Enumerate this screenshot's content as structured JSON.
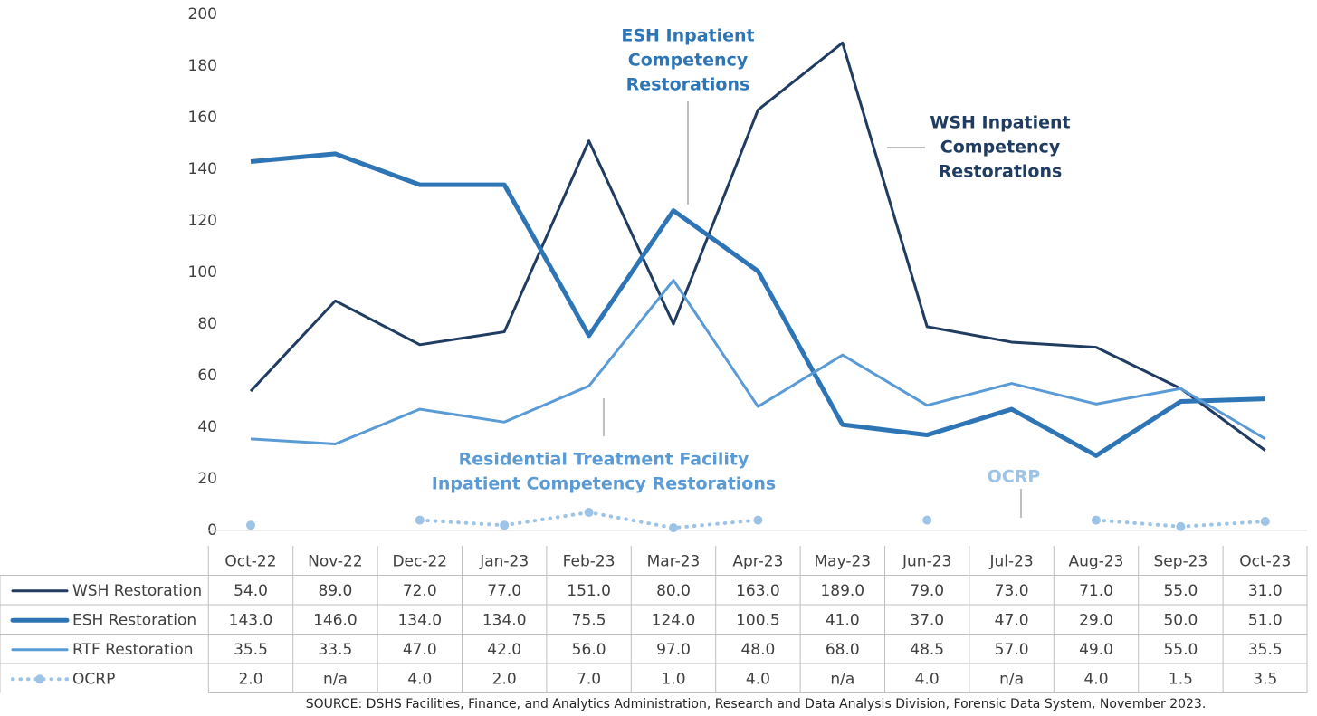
{
  "chart_data": {
    "type": "line",
    "categories": [
      "Oct-22",
      "Nov-22",
      "Dec-22",
      "Jan-23",
      "Feb-23",
      "Mar-23",
      "Apr-23",
      "May-23",
      "Jun-23",
      "Jul-23",
      "Aug-23",
      "Sep-23",
      "Oct-23"
    ],
    "series": [
      {
        "name": "WSH Restoration",
        "color": "#203c60",
        "width": 3,
        "values": [
          54,
          89,
          72,
          77,
          151,
          80,
          163,
          189,
          79,
          73,
          71,
          55,
          31
        ],
        "value_labels": [
          "54.0",
          "89.0",
          "72.0",
          "77.0",
          "151.0",
          "80.0",
          "163.0",
          "189.0",
          "79.0",
          "73.0",
          "71.0",
          "55.0",
          "31.0"
        ]
      },
      {
        "name": "ESH Restoration",
        "color": "#2e75b6",
        "width": 5,
        "values": [
          143,
          146,
          134,
          134,
          75.5,
          124,
          100.5,
          41,
          37,
          47,
          29,
          50,
          51
        ],
        "value_labels": [
          "143.0",
          "146.0",
          "134.0",
          "134.0",
          "75.5",
          "124.0",
          "100.5",
          "41.0",
          "37.0",
          "47.0",
          "29.0",
          "50.0",
          "51.0"
        ]
      },
      {
        "name": "RTF Restoration",
        "color": "#5b9bd5",
        "width": 3,
        "values": [
          35.5,
          33.5,
          47,
          42,
          56,
          97,
          48,
          68,
          48.5,
          57,
          49,
          55,
          35.5
        ],
        "value_labels": [
          "35.5",
          "33.5",
          "47.0",
          "42.0",
          "56.0",
          "97.0",
          "48.0",
          "68.0",
          "48.5",
          "57.0",
          "49.0",
          "55.0",
          "35.5"
        ]
      },
      {
        "name": "OCRP",
        "color": "#9dc3e6",
        "width": 4,
        "dotted": true,
        "markers": true,
        "values": [
          2,
          null,
          4,
          2,
          7,
          1,
          4,
          null,
          4,
          null,
          4,
          1.5,
          3.5
        ],
        "value_labels": [
          "2.0",
          "n/a",
          "4.0",
          "2.0",
          "7.0",
          "1.0",
          "4.0",
          "n/a",
          "4.0",
          "n/a",
          "4.0",
          "1.5",
          "3.5"
        ]
      }
    ],
    "ylim": [
      0,
      200
    ],
    "yticks": [
      0,
      20,
      40,
      60,
      80,
      100,
      120,
      140,
      160,
      180,
      200
    ],
    "annotations": [
      {
        "lines": [
          "ESH Inpatient",
          "Competency",
          "Restorations"
        ],
        "color": "#2e75b6"
      },
      {
        "lines": [
          "WSH Inpatient",
          "Competency",
          "Restorations"
        ],
        "color": "#203c60"
      },
      {
        "lines": [
          "Residential Treatment Facility",
          "Inpatient Competency Restorations"
        ],
        "color": "#5b9bd5"
      },
      {
        "lines": [
          "OCRP"
        ],
        "color": "#9dc3e6"
      }
    ],
    "source": "SOURCE: DSHS Facilities, Finance, and Analytics Administration, Research and Data Analysis Division, Forensic Data System, November 2023."
  }
}
